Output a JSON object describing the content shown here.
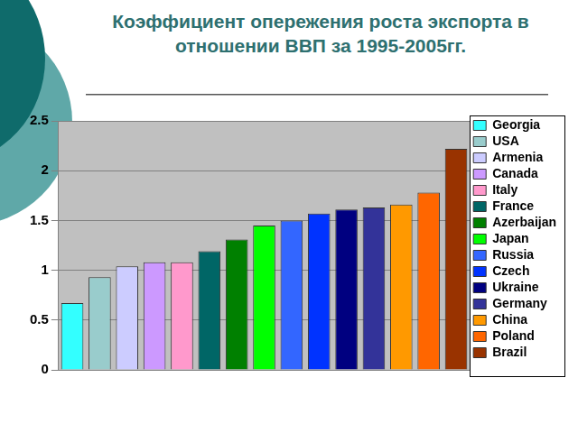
{
  "chart_data": {
    "type": "bar",
    "title": "Коэффициент опережения роста экспорта в отношении ВВП за 1995-2005гг.",
    "categories": [
      "Georgia",
      "USA",
      "Armenia",
      "Canada",
      "Italy",
      "France",
      "Azerbaijan",
      "Japan",
      "Russia",
      "Czech",
      "Ukraine",
      "Germany",
      "China",
      "Poland",
      "Brazil"
    ],
    "values": [
      0.67,
      0.93,
      1.04,
      1.08,
      1.08,
      1.19,
      1.31,
      1.45,
      1.5,
      1.57,
      1.61,
      1.63,
      1.66,
      1.78,
      2.22
    ],
    "colors": [
      "#33ffff",
      "#99cccc",
      "#ccccff",
      "#cc99ff",
      "#ff99cc",
      "#006666",
      "#008000",
      "#00ff00",
      "#3366ff",
      "#0033ff",
      "#000080",
      "#333399",
      "#ff9900",
      "#ff6600",
      "#993300"
    ],
    "ylim": [
      0,
      2.5
    ],
    "yticks": [
      0,
      0.5,
      1,
      1.5,
      2,
      2.5
    ],
    "grid": true,
    "legend": "right",
    "tick_labels": "y"
  }
}
